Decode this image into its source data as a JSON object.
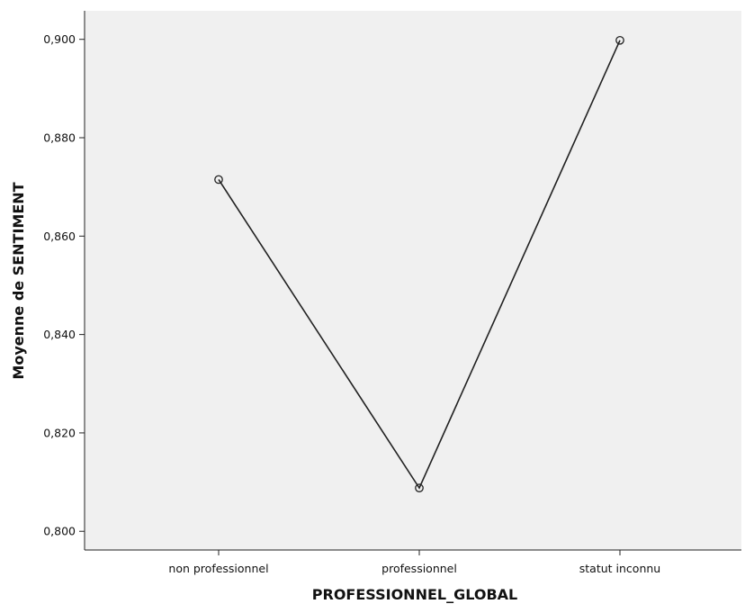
{
  "chart_data": {
    "type": "line",
    "categories": [
      "non professionnel",
      "professionnel",
      "statut inconnu"
    ],
    "values": [
      0.8715,
      0.8088,
      0.8998
    ],
    "xlabel": "PROFESSIONNEL_GLOBAL",
    "ylabel": "Moyenne de SENTIMENT",
    "ylim": [
      0.7962,
      0.9058
    ],
    "yticks": [
      0.8,
      0.82,
      0.84,
      0.86,
      0.88,
      0.9
    ],
    "ytick_labels": [
      "0,800",
      "0,820",
      "0,840",
      "0,860",
      "0,880",
      "0,900"
    ],
    "grid": false,
    "legend": "none",
    "marker": "open-circle",
    "colors": {
      "plot_background": "#f0f0f0",
      "line": "#222222",
      "axis": "#222222"
    }
  }
}
